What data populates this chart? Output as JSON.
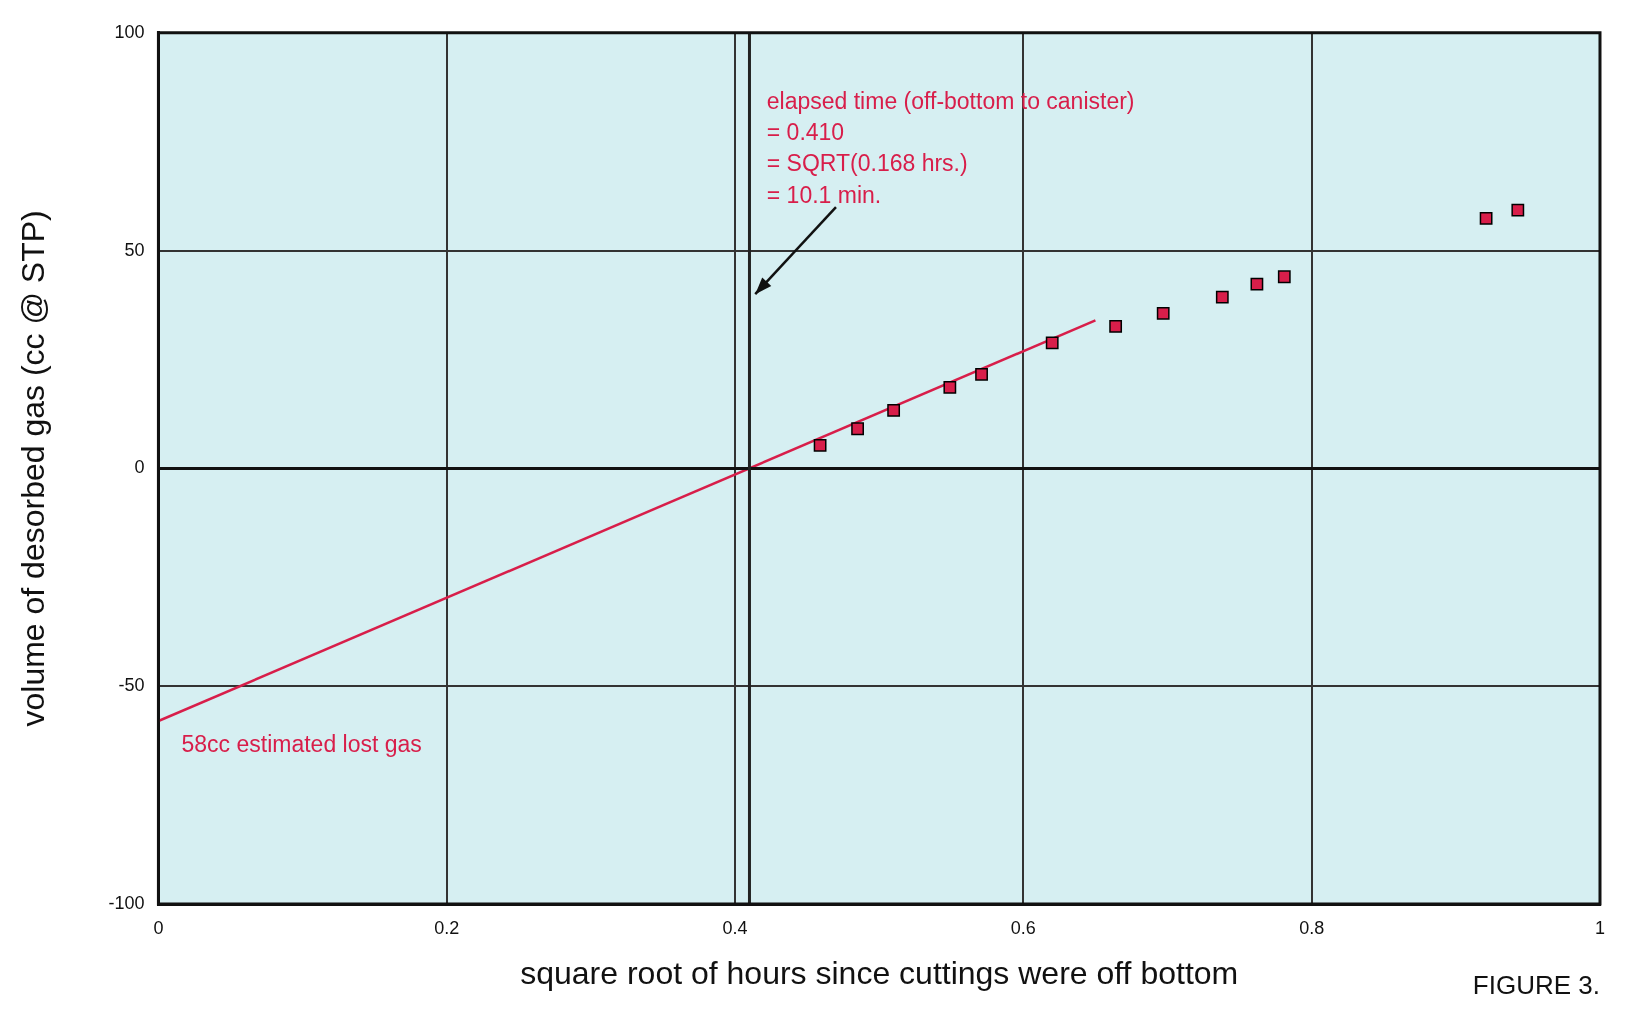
{
  "chart_data": {
    "type": "scatter",
    "xlabel": "square root of hours since cuttings were off bottom",
    "ylabel": "volume of desorbed gas (cc @ STP)",
    "xlim": [
      0,
      1
    ],
    "ylim": [
      -100,
      100
    ],
    "xticks": [
      0,
      0.2,
      0.4,
      0.6,
      0.8,
      1
    ],
    "yticks": [
      -100,
      -50,
      0,
      50,
      100
    ],
    "grid": true,
    "series": [
      {
        "marker": "square",
        "color": "#d81e4a",
        "x": [
          0.459,
          0.485,
          0.51,
          0.549,
          0.571,
          0.62,
          0.664,
          0.697,
          0.738,
          0.762,
          0.781,
          0.921,
          0.943
        ],
        "values": [
          5.3,
          9.1,
          13.3,
          18.6,
          21.6,
          28.8,
          32.6,
          35.6,
          39.3,
          42.3,
          44,
          57.4,
          59.3
        ]
      },
      {
        "type": "line",
        "color": "#d81e4a",
        "x": [
          0,
          0.65
        ],
        "values": [
          -58,
          34
        ]
      }
    ],
    "ref_lines": [
      {
        "axis": "x",
        "value": 0.41,
        "color": "#222222"
      }
    ],
    "annotations": [
      "elapsed time (off-bottom to canister)\n= 0.410\n= SQRT(0.168 hrs.)\n= 10.1 min.",
      "58cc estimated lost gas",
      "FIGURE 3."
    ]
  }
}
